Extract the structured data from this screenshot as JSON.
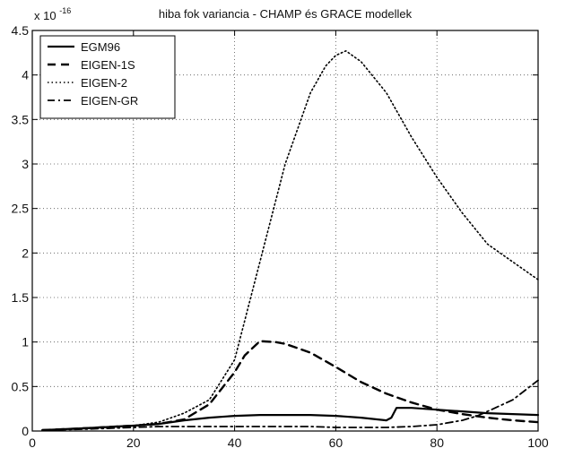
{
  "chart_data": {
    "type": "line",
    "title": "hiba fok variancia - CHAMP és GRACE modellek",
    "y_multiplier_base": "x 10",
    "y_multiplier_exponent": "-16",
    "xlim": [
      0,
      100
    ],
    "ylim": [
      0,
      4.5
    ],
    "x_ticks": [
      0,
      20,
      40,
      60,
      80,
      100
    ],
    "x_tick_labels": [
      "0",
      "20",
      "40",
      "60",
      "80",
      "100"
    ],
    "y_ticks": [
      0,
      0.5,
      1,
      1.5,
      2,
      2.5,
      3,
      3.5,
      4,
      4.5
    ],
    "y_tick_labels": [
      "0",
      "0.5",
      "1",
      "1.5",
      "2",
      "2.5",
      "3",
      "3.5",
      "4",
      "4.5"
    ],
    "grid": true,
    "legend_position": "top-left",
    "series": [
      {
        "name": "EGM96",
        "color": "#000000",
        "dash": "solid",
        "x": [
          2,
          10,
          20,
          25,
          30,
          35,
          40,
          45,
          50,
          55,
          60,
          65,
          70,
          71,
          72,
          75,
          80,
          85,
          90,
          95,
          100
        ],
        "y": [
          0.01,
          0.03,
          0.06,
          0.08,
          0.12,
          0.15,
          0.17,
          0.18,
          0.18,
          0.18,
          0.17,
          0.15,
          0.12,
          0.15,
          0.26,
          0.26,
          0.24,
          0.22,
          0.2,
          0.19,
          0.18
        ]
      },
      {
        "name": "EIGEN-1S",
        "color": "#000000",
        "dash": "long-dash",
        "x": [
          2,
          10,
          20,
          25,
          30,
          35,
          40,
          42,
          45,
          48,
          50,
          55,
          60,
          65,
          70,
          75,
          80,
          85,
          90,
          95,
          100
        ],
        "y": [
          0.01,
          0.03,
          0.06,
          0.08,
          0.13,
          0.3,
          0.66,
          0.85,
          1.01,
          1.0,
          0.98,
          0.88,
          0.72,
          0.55,
          0.42,
          0.32,
          0.24,
          0.19,
          0.15,
          0.12,
          0.1
        ]
      },
      {
        "name": "EIGEN-2",
        "color": "#000000",
        "dash": "dotted",
        "x": [
          2,
          10,
          20,
          25,
          30,
          35,
          40,
          45,
          50,
          55,
          58,
          60,
          62,
          65,
          70,
          75,
          80,
          85,
          90,
          95,
          100
        ],
        "y": [
          0.01,
          0.03,
          0.06,
          0.1,
          0.2,
          0.35,
          0.8,
          1.9,
          3.0,
          3.8,
          4.1,
          4.22,
          4.27,
          4.15,
          3.8,
          3.3,
          2.85,
          2.45,
          2.1,
          1.9,
          1.7
        ]
      },
      {
        "name": "EIGEN-GR",
        "color": "#000000",
        "dash": "dash-dot",
        "x": [
          2,
          10,
          20,
          25,
          30,
          35,
          40,
          45,
          50,
          55,
          60,
          65,
          70,
          75,
          80,
          85,
          88,
          90,
          95,
          100
        ],
        "y": [
          0.01,
          0.02,
          0.04,
          0.05,
          0.05,
          0.05,
          0.05,
          0.05,
          0.05,
          0.05,
          0.04,
          0.04,
          0.04,
          0.05,
          0.07,
          0.12,
          0.17,
          0.22,
          0.35,
          0.57
        ]
      }
    ]
  }
}
